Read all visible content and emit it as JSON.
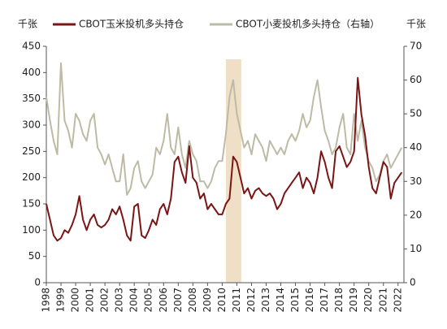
{
  "chart_data": {
    "type": "line",
    "y_label": "千张",
    "y2_label": "千张",
    "x": [
      1998,
      1998.25,
      1998.5,
      1998.75,
      1999,
      1999.25,
      1999.5,
      1999.75,
      2000,
      2000.25,
      2000.5,
      2000.75,
      2001,
      2001.25,
      2001.5,
      2001.75,
      2002,
      2002.25,
      2002.5,
      2002.75,
      2003,
      2003.25,
      2003.5,
      2003.75,
      2004,
      2004.25,
      2004.5,
      2004.75,
      2005,
      2005.25,
      2005.5,
      2005.75,
      2006,
      2006.25,
      2006.5,
      2006.75,
      2007,
      2007.25,
      2007.5,
      2007.75,
      2008,
      2008.25,
      2008.5,
      2008.75,
      2009,
      2009.25,
      2009.5,
      2009.75,
      2010,
      2010.25,
      2010.5,
      2010.75,
      2011,
      2011.25,
      2011.5,
      2011.75,
      2012,
      2012.25,
      2012.5,
      2012.75,
      2013,
      2013.25,
      2013.5,
      2013.75,
      2014,
      2014.25,
      2014.5,
      2014.75,
      2015,
      2015.25,
      2015.5,
      2015.75,
      2016,
      2016.25,
      2016.5,
      2016.75,
      2017,
      2017.25,
      2017.5,
      2017.75,
      2018,
      2018.25,
      2018.5,
      2018.75,
      2019,
      2019.25,
      2019.5,
      2019.75,
      2020,
      2020.25,
      2020.5,
      2020.75,
      2021,
      2021.25,
      2021.5,
      2021.75,
      2022,
      2022.25
    ],
    "series": [
      {
        "name": "CBOT玉米投机多头持仓",
        "color": "#7b1515",
        "values": [
          150,
          120,
          90,
          80,
          85,
          100,
          95,
          110,
          130,
          165,
          120,
          100,
          120,
          130,
          110,
          105,
          110,
          120,
          140,
          130,
          145,
          120,
          90,
          80,
          145,
          150,
          90,
          85,
          100,
          120,
          110,
          140,
          150,
          130,
          160,
          230,
          240,
          210,
          190,
          260,
          200,
          190,
          160,
          170,
          140,
          150,
          140,
          130,
          130,
          150,
          160,
          240,
          230,
          200,
          170,
          180,
          160,
          175,
          180,
          170,
          165,
          170,
          160,
          140,
          150,
          170,
          180,
          190,
          200,
          210,
          180,
          200,
          190,
          170,
          200,
          250,
          230,
          200,
          180,
          250,
          260,
          240,
          220,
          230,
          250,
          390,
          320,
          280,
          220,
          180,
          170,
          200,
          230,
          220,
          160,
          190,
          200,
          210
        ]
      },
      {
        "name": "CBOT小麦投机多头持仓（右轴）",
        "color": "#bdbba6",
        "axis": "y2",
        "values": [
          55,
          48,
          42,
          38,
          65,
          48,
          45,
          40,
          50,
          48,
          44,
          42,
          48,
          50,
          40,
          38,
          35,
          38,
          34,
          30,
          30,
          38,
          26,
          28,
          34,
          36,
          30,
          28,
          30,
          32,
          40,
          38,
          42,
          50,
          40,
          38,
          46,
          38,
          34,
          42,
          38,
          36,
          30,
          30,
          28,
          30,
          34,
          36,
          36,
          44,
          55,
          60,
          50,
          45,
          40,
          42,
          38,
          44,
          42,
          40,
          36,
          42,
          40,
          38,
          40,
          38,
          42,
          44,
          42,
          45,
          50,
          46,
          48,
          55,
          60,
          52,
          45,
          42,
          38,
          40,
          46,
          50,
          40,
          38,
          50,
          42,
          48,
          40,
          36,
          34,
          30,
          32,
          36,
          38,
          34,
          36,
          38,
          40
        ]
      }
    ],
    "shade_x": [
      2010.25,
      2011.3
    ],
    "shade_color": "#eedfc6",
    "xlim": [
      1998,
      2022.4
    ],
    "xticks": [
      1998,
      1999,
      2000,
      2001,
      2002,
      2003,
      2004,
      2005,
      2006,
      2007,
      2008,
      2009,
      2010,
      2011,
      2012,
      2013,
      2014,
      2015,
      2016,
      2017,
      2018,
      2019,
      2020,
      2021,
      2022
    ],
    "ylim": [
      0,
      450
    ],
    "yticks": [
      0,
      50,
      100,
      150,
      200,
      250,
      300,
      350,
      400,
      450
    ],
    "y2lim": [
      0,
      70
    ],
    "y2ticks": [
      0,
      10,
      20,
      30,
      40,
      50,
      60,
      70
    ]
  }
}
